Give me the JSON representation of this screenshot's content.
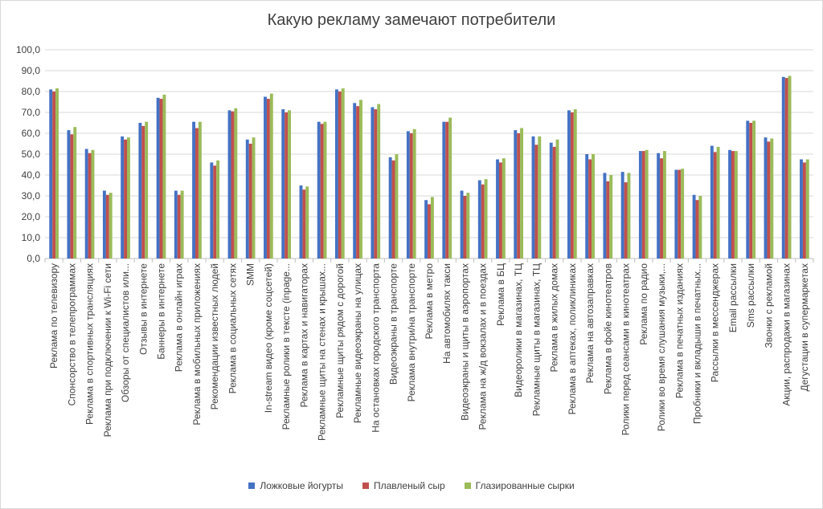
{
  "chart_data": {
    "type": "bar",
    "title": "Какую рекламу замечают потребители",
    "ylim": [
      0,
      100
    ],
    "yticks": [
      "0,0",
      "10,0",
      "20,0",
      "30,0",
      "40,0",
      "50,0",
      "60,0",
      "70,0",
      "80,0",
      "90,0",
      "100,0"
    ],
    "grid": true,
    "legend_position": "bottom",
    "categories": [
      "Реклама по телевизору",
      "Спонсорство в телепрограммах",
      "Реклама в спортивных трансляциях",
      "Реклама при подключении к Wi-Fi сети",
      "Обзоры от специалистов или...",
      "Отзывы в интернете",
      "Баннеры в интернете",
      "Реклама в онлайн играх",
      "Реклама в мобильных приложениях",
      "Рекомендации известных людей",
      "Реклама в социальных сетях",
      "SMM",
      "In-stream видео (кроме соцсетей)",
      "Рекламные ролики в тексте (inpage...",
      "Реклама в картах и навигаторах",
      "Рекламные щиты на стенах и крышах...",
      "Рекламные щиты рядом с дорогой",
      "Рекламные видеоэкраны на улицах",
      "На остановках городского транспорта",
      "Видеоэкраны в транспорте",
      "Реклама внутри/на транспорте",
      "Реклама в метро",
      "На автомобилях такси",
      "Видеоэкраны и щиты в аэропортах",
      "Реклама на ж/д вокзалах и в поездах",
      "Реклама в БЦ",
      "Видеоролики в магазинах, ТЦ",
      "Рекламные щиты в магазинах, ТЦ",
      "Реклама в жилых домах",
      "Реклама в аптеках, поликлиниках",
      "Реклама на автозаправках",
      "Реклама в фойе кинотеатров",
      "Ролики перед сеансами в кинотеатрах",
      "Реклама по радио",
      "Ролики во время слушания музыки,...",
      "Реклама в печатных изданиях",
      "Пробники и вкладыши в печатных...",
      "Рассылки в мессенджерах",
      "Email рассылки",
      "Sms рассылки",
      "Звонки с рекламой",
      "Акции, распродажи в магазинах",
      "Дегустации в супермаркетах"
    ],
    "series": [
      {
        "name": "Ложковые йогурты",
        "color": "#4472c4",
        "values": [
          81,
          61.5,
          52.5,
          32.5,
          58.5,
          65,
          77,
          32.5,
          65.5,
          46,
          71,
          57,
          77.5,
          71.5,
          35,
          65.5,
          81,
          74.5,
          72.5,
          48.5,
          61,
          28,
          65.5,
          32.5,
          37.5,
          47.5,
          61.5,
          58.5,
          55.5,
          71,
          50,
          41,
          41.5,
          51.5,
          50.5,
          42.5,
          30.5,
          54,
          52,
          66,
          58,
          87,
          47.5
        ]
      },
      {
        "name": "Плавленый сыр",
        "color": "#c0504d",
        "values": [
          80,
          59.5,
          50.5,
          30.5,
          57,
          63.5,
          76.5,
          30.5,
          62.5,
          44.5,
          70.5,
          55,
          76.5,
          70,
          33,
          64.5,
          80,
          73,
          71.5,
          47,
          60,
          26,
          65.5,
          30,
          35.5,
          46,
          60,
          54.5,
          53.5,
          70,
          47.5,
          37,
          36.5,
          51.5,
          48,
          42.5,
          28,
          51,
          51.5,
          65,
          56,
          86.5,
          46
        ]
      },
      {
        "name": "Глазированные сырки",
        "color": "#9bbb59",
        "values": [
          81.5,
          63,
          52,
          31.5,
          58,
          65.5,
          78.5,
          32.5,
          65.5,
          47,
          72,
          58,
          79,
          71,
          34.5,
          65.5,
          81.5,
          76,
          74,
          50,
          62,
          29.5,
          67.5,
          31.5,
          38,
          48,
          62.5,
          58.5,
          57,
          71.5,
          50,
          40,
          41,
          52,
          51.5,
          43,
          30,
          53.5,
          51.5,
          66,
          57.5,
          87.5,
          47.5
        ]
      }
    ]
  }
}
